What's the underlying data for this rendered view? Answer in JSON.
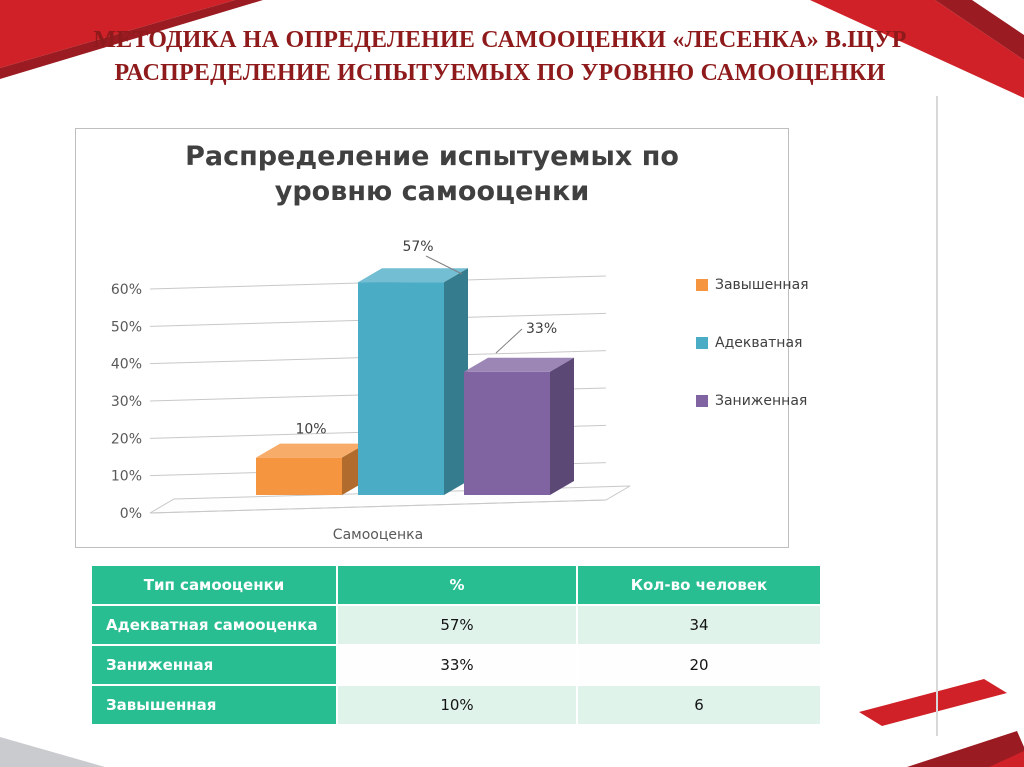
{
  "slide": {
    "title_line1": "МЕТОДИКА НА ОПРЕДЕЛЕНИЕ САМООЦЕНКИ «ЛЕСЕНКА» В.ЩУР",
    "title_line2": "РАСПРЕДЕЛЕНИЕ ИСПЫТУЕМЫХ ПО УРОВНЮ САМООЦЕНКИ"
  },
  "colors": {
    "accent_red": "#CF2127",
    "accent_red_dark": "#9A1B21",
    "title_text": "#8E1A1B",
    "table_header_green": "#29BE91",
    "table_row_tint": "#DFF3EB",
    "corner_gray": "#C9CBCE"
  },
  "chart_data": {
    "type": "bar",
    "style": "3d-column",
    "title": "Распределение испытуемых по уровню самооценки",
    "xlabel": "Самооценка",
    "categories": [
      "Самооценка"
    ],
    "series": [
      {
        "name": "Завышенная",
        "value": 10,
        "color": "#F5953F"
      },
      {
        "name": "Адекватная",
        "value": 57,
        "color": "#4BACC6"
      },
      {
        "name": "Заниженная",
        "value": 33,
        "color": "#8064A2"
      }
    ],
    "data_labels": [
      "10%",
      "57%",
      "33%"
    ],
    "ylim": [
      0,
      60
    ],
    "ytick_step": 10,
    "ytick_labels": [
      "0%",
      "10%",
      "20%",
      "30%",
      "40%",
      "50%",
      "60%"
    ],
    "legend_position": "right",
    "grid": true
  },
  "table": {
    "headers": [
      "Тип самооценки",
      "%",
      "Кол-во человек"
    ],
    "rows": [
      [
        "Адекватная самооценка",
        "57%",
        "34"
      ],
      [
        "Заниженная",
        "33%",
        "20"
      ],
      [
        "Завышенная",
        "10%",
        "6"
      ]
    ]
  }
}
